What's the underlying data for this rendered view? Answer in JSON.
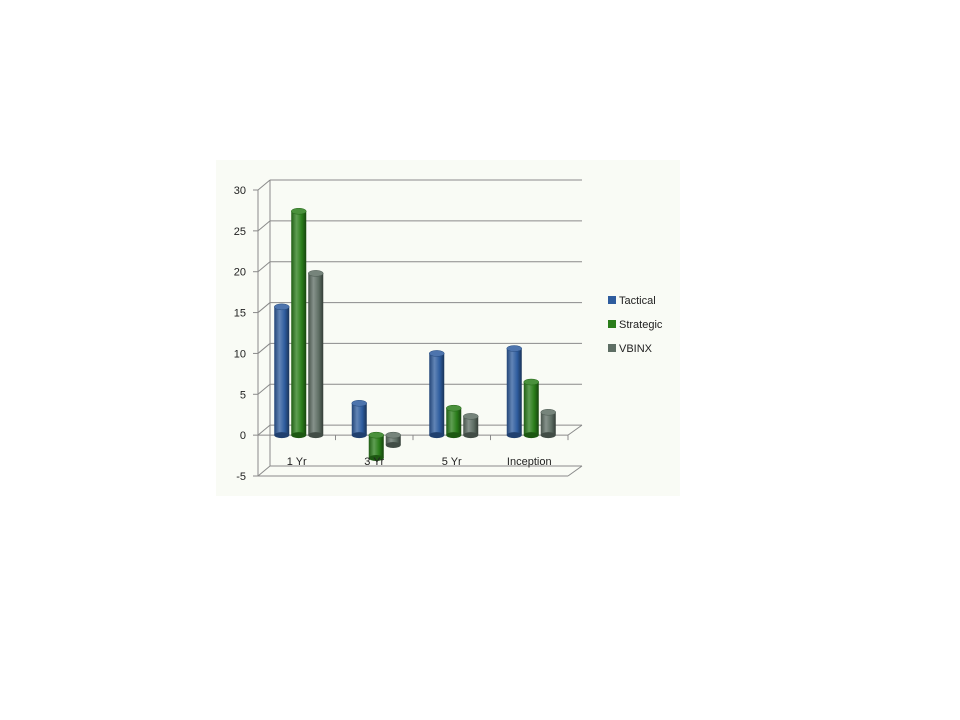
{
  "chart_data": {
    "type": "bar",
    "categories": [
      "1 Yr",
      "3 Yr",
      "5 Yr",
      "Inception"
    ],
    "series": [
      {
        "name": "Tactical",
        "values": [
          15.7,
          3.9,
          10.0,
          10.6
        ],
        "color": "#2e5c9e"
      },
      {
        "name": "Strategic",
        "values": [
          27.4,
          -2.8,
          3.3,
          6.5
        ],
        "color": "#2a7d1a"
      },
      {
        "name": "VBINX",
        "values": [
          19.8,
          -1.2,
          2.3,
          2.8
        ],
        "color": "#5e6e64"
      }
    ],
    "ylim": [
      -5,
      30
    ],
    "yticks": [
      -5,
      0,
      5,
      10,
      15,
      20,
      25,
      30
    ],
    "grid": true,
    "legend_position": "right",
    "style": "3d-cylinder"
  }
}
